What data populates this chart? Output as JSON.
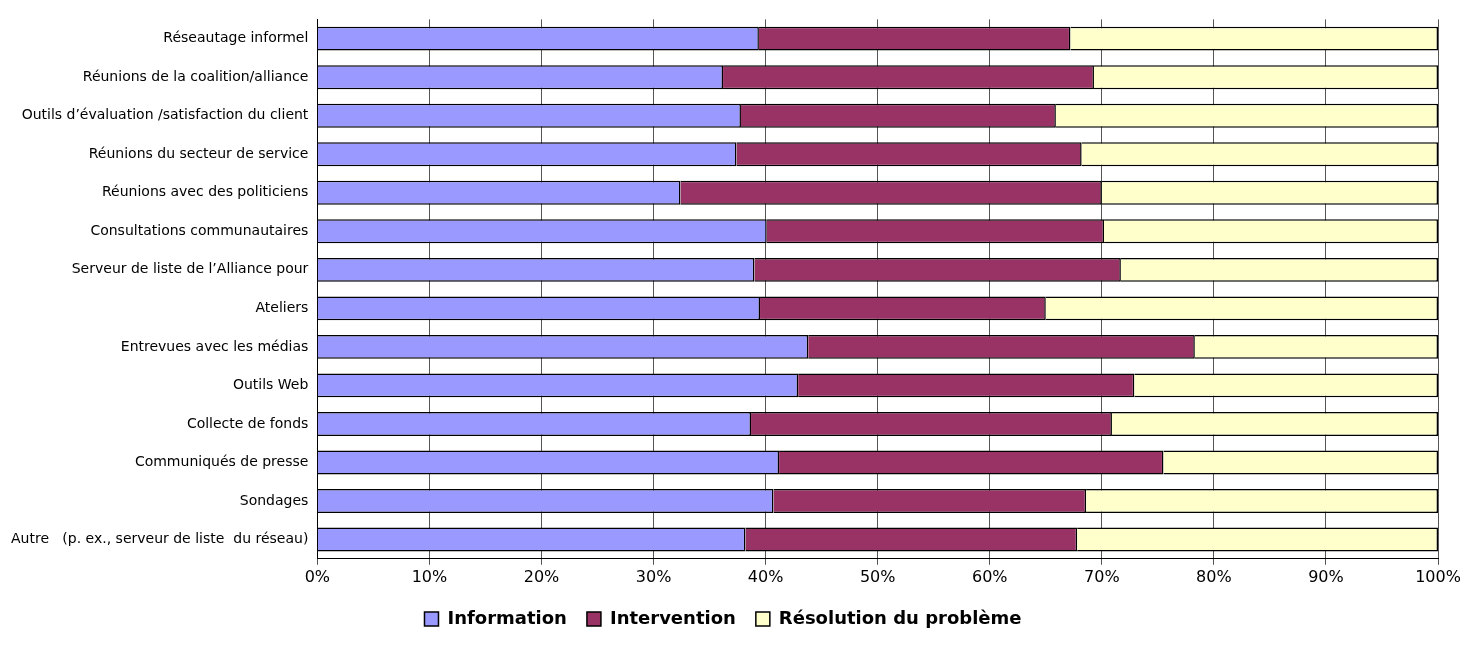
{
  "chart_data": {
    "type": "bar",
    "orientation": "horizontal",
    "stacked": true,
    "categories": [
      "Réseautage informel",
      "Réunions de la coalition/alliance",
      "Outils d’évaluation /satisfaction du client",
      "Réunions du secteur de service",
      "Réunions avec des politiciens",
      "Consultations communautaires",
      "Serveur de liste de l’Alliance pour",
      "Ateliers",
      "Entrevues avec les médias",
      "Outils Web",
      "Collecte de fonds",
      "Communiqués de presse",
      "Sondages",
      "Autre   (p. ex., serveur de liste  du réseau)"
    ],
    "series": [
      {
        "name": "Information",
        "color": "#9999ff",
        "values": [
          39.4,
          36.2,
          37.8,
          37.4,
          32.4,
          40.1,
          39.0,
          39.5,
          43.8,
          42.9,
          38.7,
          41.2,
          40.7,
          38.2
        ]
      },
      {
        "name": "Intervention",
        "color": "#993366",
        "values": [
          27.8,
          33.1,
          28.1,
          30.8,
          37.6,
          30.1,
          32.7,
          25.5,
          34.5,
          30.0,
          32.2,
          34.3,
          27.9,
          29.6
        ]
      },
      {
        "name": "Résolution du problème",
        "color": "#ffffcc",
        "values": [
          32.8,
          30.7,
          34.1,
          31.8,
          30.0,
          29.8,
          28.3,
          35.0,
          21.7,
          27.1,
          29.1,
          24.5,
          31.4,
          32.2
        ]
      }
    ],
    "xlim": [
      0,
      100
    ],
    "xticks": [
      {
        "value": 0,
        "label": "0%"
      },
      {
        "value": 10,
        "label": "10%"
      },
      {
        "value": 20,
        "label": "20%"
      },
      {
        "value": 30,
        "label": "30%"
      },
      {
        "value": 40,
        "label": "40%"
      },
      {
        "value": 50,
        "label": "50%"
      },
      {
        "value": 60,
        "label": "60%"
      },
      {
        "value": 70,
        "label": "70%"
      },
      {
        "value": 80,
        "label": "80%"
      },
      {
        "value": 90,
        "label": "90%"
      },
      {
        "value": 100,
        "label": "100%"
      }
    ],
    "grid": "x",
    "legend": "bottom"
  }
}
